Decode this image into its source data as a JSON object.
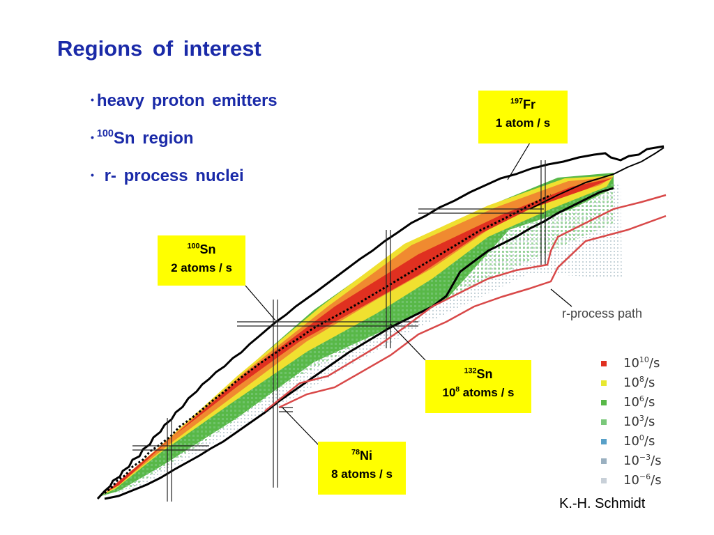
{
  "slide": {
    "title": "Regions  of  interest",
    "bullets": [
      {
        "bullet": "•",
        "pre": "heavy  proton  emitters",
        "sup": "",
        "post": ""
      },
      {
        "bullet": "•",
        "pre": "",
        "sup": "100",
        "post": "Sn  region"
      },
      {
        "bullet": "•",
        "pre": " r- process  nuclei",
        "sup": "",
        "post": ""
      }
    ]
  },
  "callouts": {
    "fr197": {
      "mass": "197",
      "symbol": "Fr",
      "rate": "1 atom / s"
    },
    "sn100": {
      "mass": "100",
      "symbol": "Sn",
      "rate": "2 atoms / s"
    },
    "sn132": {
      "mass": "132",
      "symbol": "Sn",
      "rate_base": "10",
      "rate_exp": "8",
      "rate_unit": " atoms / s"
    },
    "ni78": {
      "mass": "78",
      "symbol": "Ni",
      "rate": "8 atoms / s"
    }
  },
  "rprocess_label": "r-process path",
  "legend": [
    {
      "base": "10",
      "exp": "10",
      "unit": "/s",
      "color": "#e03020"
    },
    {
      "base": "10",
      "exp": "8",
      "unit": "/s",
      "color": "#e8e830"
    },
    {
      "base": "10",
      "exp": "6",
      "unit": "/s",
      "color": "#58b848"
    },
    {
      "base": "10",
      "exp": "3",
      "unit": "/s",
      "color": "#7ac87a"
    },
    {
      "base": "10",
      "exp": "0",
      "unit": "/s",
      "color": "#58a0c8"
    },
    {
      "base": "10",
      "exp": "−3",
      "unit": "/s",
      "color": "#9ab0c0"
    },
    {
      "base": "10",
      "exp": "−6",
      "unit": "/s",
      "color": "#c8d0d8"
    }
  ],
  "credit": "K.-H. Schmidt",
  "colors": {
    "title": "#1a2aa8",
    "callout_bg": "#ffff00",
    "red_band": "#e03020",
    "orange_band": "#f08a30",
    "yellow_band": "#f0e030",
    "green_band": "#58b848",
    "rprocess_line": "#d84848"
  }
}
